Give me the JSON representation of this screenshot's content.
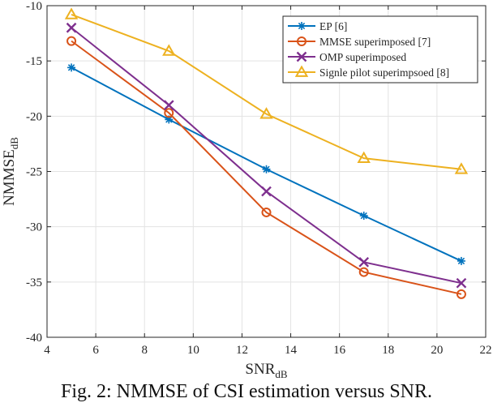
{
  "chart_data": {
    "type": "line",
    "title": "",
    "xlabel": "SNR",
    "xlabel_sub": "dB",
    "ylabel": "NMMSE",
    "ylabel_sub": "dB",
    "xlim": [
      4,
      22
    ],
    "ylim": [
      -40,
      -10
    ],
    "xticks": [
      4,
      6,
      8,
      10,
      12,
      14,
      16,
      18,
      20,
      22
    ],
    "yticks": [
      -40,
      -35,
      -30,
      -25,
      -20,
      -15,
      -10
    ],
    "grid": true,
    "legend_position": "top-right",
    "x": [
      5,
      9,
      13,
      17,
      21
    ],
    "series": [
      {
        "name": "EP [6]",
        "color": "#0072BD",
        "marker": "asterisk",
        "values": [
          -15.6,
          -20.3,
          -24.8,
          -29.0,
          -33.1
        ]
      },
      {
        "name": "MMSE superimposed [7]",
        "color": "#D95319",
        "marker": "circle",
        "values": [
          -13.2,
          -19.7,
          -28.7,
          -34.1,
          -36.1
        ]
      },
      {
        "name": "OMP superimposed",
        "color": "#7E2F8E",
        "marker": "x",
        "values": [
          -12.0,
          -19.0,
          -26.8,
          -33.2,
          -35.1
        ]
      },
      {
        "name": "Signle pilot superimpsoed [8]",
        "color": "#EDB120",
        "marker": "triangle",
        "values": [
          -10.8,
          -14.1,
          -19.8,
          -23.8,
          -24.8
        ]
      }
    ]
  },
  "caption": "Fig. 2: NMMSE of CSI estimation versus SNR."
}
